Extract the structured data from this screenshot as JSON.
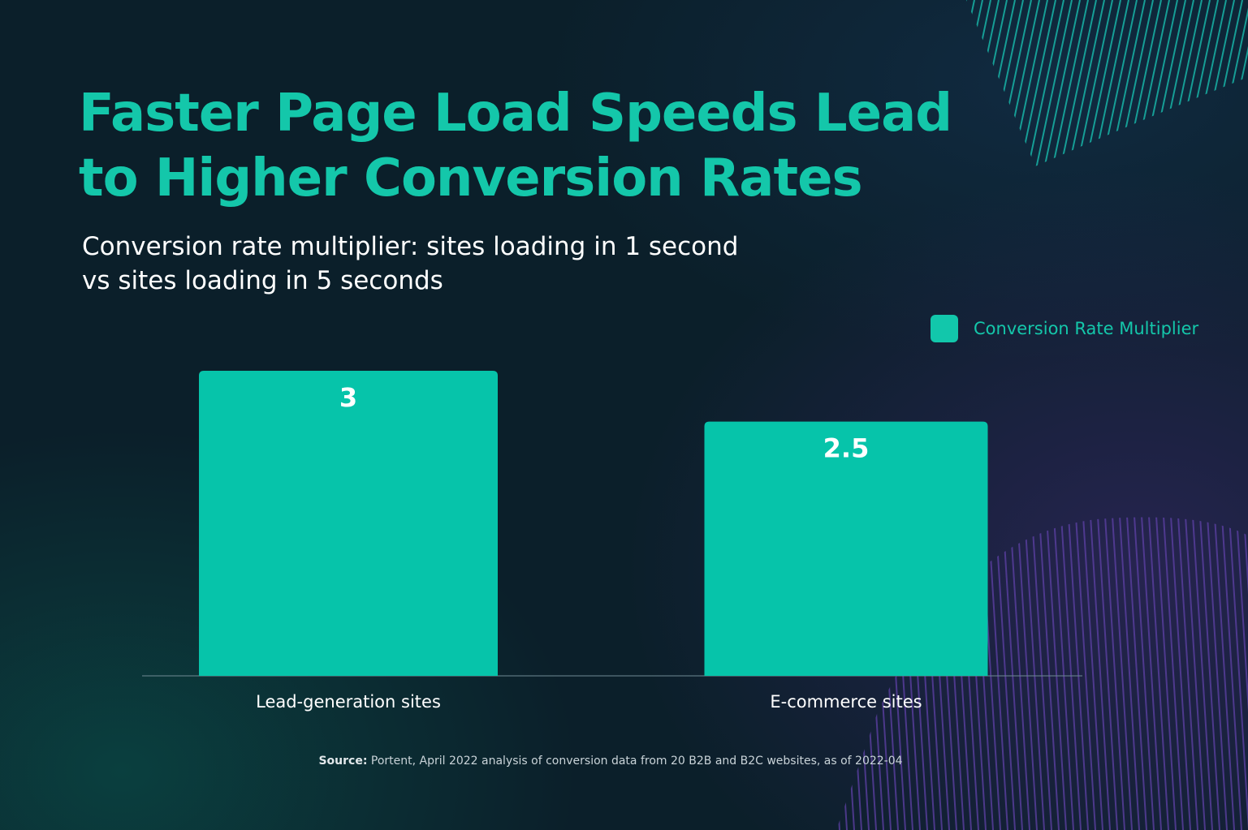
{
  "colors": {
    "accent": "#14c7aa",
    "bar": "#06c4aa",
    "background": "#0b1f2a",
    "decor_teal": "#18b3a6",
    "decor_purple": "#5a3fa0"
  },
  "chart_data": {
    "type": "bar",
    "title": "Faster Page Load Speeds Lead to Higher Conversion Rates",
    "subtitle_line1": "Conversion rate multiplier: sites loading in 1 second",
    "subtitle_line2": "vs sites loading in 5 seconds",
    "categories": [
      "Lead-generation sites",
      "E-commerce sites"
    ],
    "series": [
      {
        "name": "Conversion Rate Multiplier",
        "values": [
          3,
          2.5
        ],
        "value_labels": [
          "3",
          "2.5"
        ]
      }
    ],
    "ylim": [
      0,
      3
    ],
    "grid": false,
    "legend_position": "top-right",
    "source_label": "Source:",
    "source_text": " Portent, April 2022 analysis of conversion data from 20 B2B and B2C websites, as of 2022-04"
  }
}
